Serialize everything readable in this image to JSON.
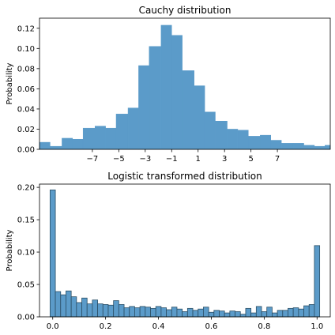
{
  "chart_data": [
    {
      "type": "bar",
      "title": "Cauchy distribution",
      "xlabel": "",
      "ylabel": "Probability",
      "xlim": [
        -11,
        11
      ],
      "ylim": [
        0,
        0.13
      ],
      "x_ticks": [
        "−7",
        "−5",
        "−3",
        "−1",
        "1",
        "3",
        "5",
        "7"
      ],
      "y_ticks": [
        "0.00",
        "0.02",
        "0.04",
        "0.06",
        "0.08",
        "0.10",
        "0.12"
      ],
      "grid": false,
      "bin_edges": [
        -11,
        -10.2,
        -9.3,
        -8.5,
        -7.7,
        -6.8,
        -6.0,
        -5.2,
        -4.3,
        -3.5,
        -2.7,
        -1.8,
        -1.0,
        -0.2,
        0.7,
        1.5,
        2.3,
        3.2,
        4.0,
        4.8,
        5.7,
        6.5,
        7.3,
        8.2,
        9.0,
        9.8,
        10.6,
        11
      ],
      "values": [
        0.007,
        0.003,
        0.011,
        0.01,
        0.021,
        0.023,
        0.021,
        0.035,
        0.041,
        0.083,
        0.102,
        0.123,
        0.113,
        0.078,
        0.063,
        0.037,
        0.028,
        0.02,
        0.019,
        0.013,
        0.014,
        0.009,
        0.006,
        0.006,
        0.004,
        0.003,
        0.004
      ]
    },
    {
      "type": "bar",
      "title": "Logistic transformed distribution",
      "xlabel": "",
      "ylabel": "Probability",
      "xlim": [
        -0.05,
        1.05
      ],
      "ylim": [
        0,
        0.205
      ],
      "x_ticks": [
        "0.0",
        "0.2",
        "0.4",
        "0.6",
        "0.8",
        "1.0"
      ],
      "y_ticks": [
        "0.00",
        "0.05",
        "0.10",
        "0.15",
        "0.20"
      ],
      "grid": false,
      "bin_range": [
        -0.01,
        1.01
      ],
      "values": [
        0.196,
        0.039,
        0.034,
        0.04,
        0.031,
        0.022,
        0.029,
        0.02,
        0.026,
        0.02,
        0.019,
        0.018,
        0.025,
        0.019,
        0.014,
        0.016,
        0.014,
        0.016,
        0.015,
        0.013,
        0.016,
        0.014,
        0.011,
        0.015,
        0.012,
        0.008,
        0.013,
        0.01,
        0.012,
        0.015,
        0.007,
        0.01,
        0.009,
        0.006,
        0.009,
        0.008,
        0.004,
        0.013,
        0.006,
        0.016,
        0.008,
        0.015,
        0.006,
        0.01,
        0.01,
        0.013,
        0.014,
        0.012,
        0.017,
        0.019,
        0.11
      ]
    }
  ],
  "colors": {
    "bar_fill": "#5b9bc9",
    "bar_edge": "#2b4f66"
  }
}
